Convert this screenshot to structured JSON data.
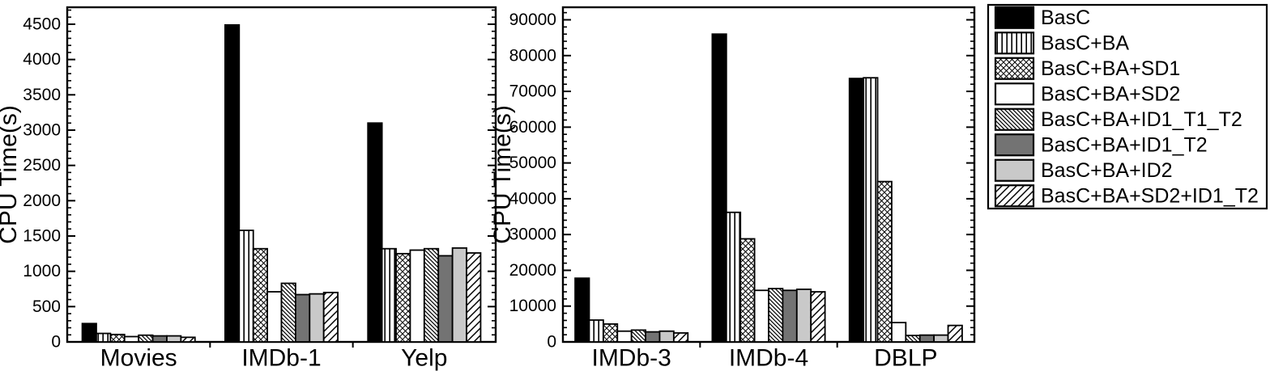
{
  "figure_title": "",
  "colors": {
    "background": "#ffffff",
    "bar_outline": "#000000",
    "solid_black": "#000000",
    "dark_gray": "#737373",
    "light_gray": "#c9c9c9",
    "frame": "#000000"
  },
  "legend": {
    "position": "right",
    "entries": [
      {
        "label": "BasC",
        "pattern": "solid-black"
      },
      {
        "label": "BasC+BA",
        "pattern": "vlines"
      },
      {
        "label": "BasC+BA+SD1",
        "pattern": "xhatch"
      },
      {
        "label": "BasC+BA+SD2",
        "pattern": "white"
      },
      {
        "label": "BasC+BA+ID1_T1_T2",
        "pattern": "bdiag"
      },
      {
        "label": "BasC+BA+ID1_T2",
        "pattern": "dark-gray"
      },
      {
        "label": "BasC+BA+ID2",
        "pattern": "light-gray"
      },
      {
        "label": "BasC+BA+SD2+ID1_T2",
        "pattern": "fdiag"
      }
    ]
  },
  "chart_data": [
    {
      "type": "bar",
      "title": "",
      "xlabel": "",
      "ylabel": "CPU Time(s)",
      "grid": false,
      "ylim": [
        0,
        4740
      ],
      "ytick_major": 500,
      "ytick_minor": 100,
      "categories": [
        "Movies",
        "IMDb-1",
        "Yelp"
      ],
      "series": [
        {
          "name": "BasC",
          "pattern": "solid-black",
          "values": [
            260,
            4490,
            3100
          ]
        },
        {
          "name": "BasC+BA",
          "pattern": "vlines",
          "values": [
            120,
            1580,
            1320
          ]
        },
        {
          "name": "BasC+BA+SD1",
          "pattern": "xhatch",
          "values": [
            105,
            1320,
            1250
          ]
        },
        {
          "name": "BasC+BA+SD2",
          "pattern": "white",
          "values": [
            75,
            710,
            1300
          ]
        },
        {
          "name": "BasC+BA+ID1_T1_T2",
          "pattern": "bdiag",
          "values": [
            95,
            830,
            1320
          ]
        },
        {
          "name": "BasC+BA+ID1_T2",
          "pattern": "dark-gray",
          "values": [
            85,
            670,
            1220
          ]
        },
        {
          "name": "BasC+BA+ID2",
          "pattern": "light-gray",
          "values": [
            85,
            680,
            1330
          ]
        },
        {
          "name": "BasC+BA+SD2+ID1_T2",
          "pattern": "fdiag",
          "values": [
            65,
            700,
            1260
          ]
        }
      ]
    },
    {
      "type": "bar",
      "title": "",
      "xlabel": "",
      "ylabel": "CPU Time(s)",
      "grid": false,
      "ylim": [
        0,
        93500
      ],
      "ytick_major": 10000,
      "ytick_minor": 2000,
      "categories": [
        "IMDb-3",
        "IMDb-4",
        "DBLP"
      ],
      "series": [
        {
          "name": "BasC",
          "pattern": "solid-black",
          "values": [
            17800,
            86000,
            73600
          ]
        },
        {
          "name": "BasC+BA",
          "pattern": "vlines",
          "values": [
            6100,
            36200,
            73800
          ]
        },
        {
          "name": "BasC+BA+SD1",
          "pattern": "xhatch",
          "values": [
            5000,
            28800,
            44800
          ]
        },
        {
          "name": "BasC+BA+SD2",
          "pattern": "white",
          "values": [
            3000,
            14400,
            5400
          ]
        },
        {
          "name": "BasC+BA+ID1_T1_T2",
          "pattern": "bdiag",
          "values": [
            3300,
            14900,
            1800
          ]
        },
        {
          "name": "BasC+BA+ID1_T2",
          "pattern": "dark-gray",
          "values": [
            2800,
            14400,
            1900
          ]
        },
        {
          "name": "BasC+BA+ID2",
          "pattern": "light-gray",
          "values": [
            3000,
            14700,
            1900
          ]
        },
        {
          "name": "BasC+BA+SD2+ID1_T2",
          "pattern": "fdiag",
          "values": [
            2500,
            14000,
            4600
          ]
        }
      ]
    }
  ]
}
